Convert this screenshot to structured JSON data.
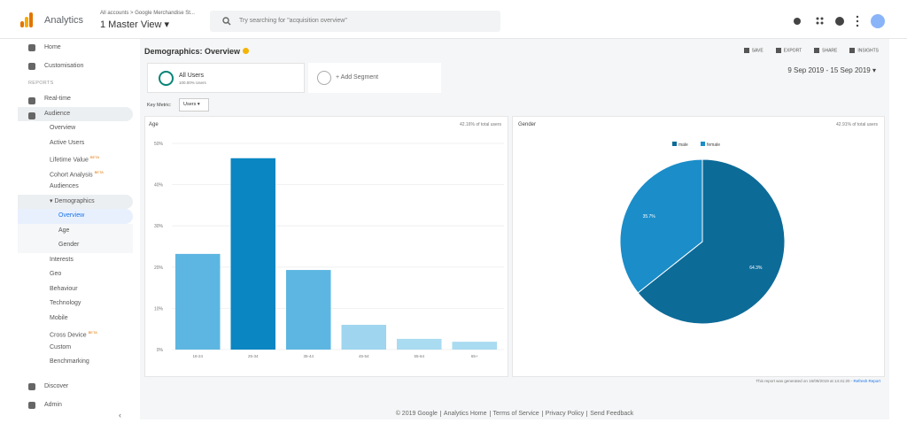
{
  "header": {
    "app": "Analytics",
    "breadcrumb": "All accounts > Google Merchandise St...",
    "view": "1 Master View",
    "search_placeholder": "Try searching for \"acquisition overview\""
  },
  "sidebar": {
    "top": [
      {
        "label": "Home"
      },
      {
        "label": "Customisation"
      }
    ],
    "section": "REPORTS",
    "reports": [
      {
        "label": "Real-time"
      },
      {
        "label": "Audience",
        "children": [
          {
            "label": "Overview"
          },
          {
            "label": "Active Users"
          },
          {
            "label": "Lifetime Value",
            "badge": "BETA"
          },
          {
            "label": "Cohort Analysis",
            "badge": "BETA"
          },
          {
            "label": "Audiences"
          },
          {
            "label": "Demographics",
            "children": [
              {
                "label": "Overview"
              },
              {
                "label": "Age"
              },
              {
                "label": "Gender"
              }
            ]
          },
          {
            "label": "Interests"
          },
          {
            "label": "Geo"
          },
          {
            "label": "Behaviour"
          },
          {
            "label": "Technology"
          },
          {
            "label": "Mobile"
          },
          {
            "label": "Cross Device",
            "badge": "BETA"
          },
          {
            "label": "Custom"
          },
          {
            "label": "Benchmarking"
          }
        ]
      }
    ],
    "bottom": [
      {
        "label": "Discover"
      },
      {
        "label": "Admin"
      }
    ]
  },
  "report": {
    "title": "Demographics: Overview",
    "actions": [
      "SAVE",
      "EXPORT",
      "SHARE",
      "INSIGHTS"
    ],
    "segment": {
      "name": "All Users",
      "detail": "100.00% Users"
    },
    "add_segment": "+ Add Segment",
    "date_range": "9 Sep 2019 - 15 Sep 2019",
    "key_metric_label": "Key Metric:",
    "key_metric": "Users",
    "generated": "This report was generated on 16/09/2019 at 14:41:20 -",
    "refresh": "Refresh Report"
  },
  "chart_data": [
    {
      "type": "bar",
      "title": "Age",
      "note": "42.16% of total users",
      "categories": [
        "18-24",
        "25-34",
        "35-44",
        "45-54",
        "55-64",
        "65+"
      ],
      "values": [
        23.2,
        46.4,
        19.3,
        6.0,
        2.6,
        1.9
      ],
      "colors": [
        "#5db6e1",
        "#0a86c2",
        "#5db6e1",
        "#9fd5ee",
        "#a9dbf1",
        "#a9dbf1"
      ],
      "ylim": [
        0,
        50
      ],
      "yticks": [
        {
          "value": 0,
          "label": "0%"
        },
        {
          "value": 10,
          "label": "10%"
        },
        {
          "value": 20,
          "label": "20%"
        },
        {
          "value": 30,
          "label": "30%"
        },
        {
          "value": 40,
          "label": "40%"
        },
        {
          "value": 50,
          "label": "50%"
        }
      ],
      "grid": true
    },
    {
      "type": "pie",
      "title": "Gender",
      "note": "42.91% of total users",
      "categories": [
        "male",
        "female"
      ],
      "values": [
        64.3,
        35.7
      ],
      "value_labels": [
        "64.3%",
        "35.7%"
      ],
      "colors": [
        "#0d6b98",
        "#1b8dc9"
      ],
      "legend": "top"
    }
  ],
  "footer": {
    "links": [
      "© 2019 Google",
      "Analytics Home",
      "Terms of Service",
      "Privacy Policy",
      "Send Feedback"
    ]
  }
}
